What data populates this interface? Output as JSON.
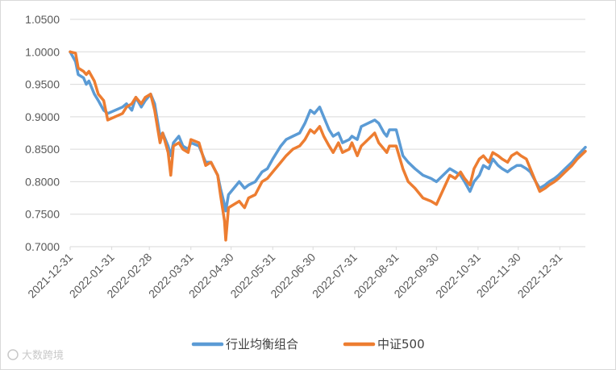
{
  "watermark": {
    "text": "大数跨境"
  },
  "chart_data": {
    "type": "line",
    "title": "",
    "xlabel": "",
    "ylabel": "",
    "ylim": [
      0.7,
      1.05
    ],
    "yticks": [
      "0.7000",
      "0.7500",
      "0.8000",
      "0.8500",
      "0.9000",
      "0.9500",
      "1.0000",
      "1.0500"
    ],
    "xticks": [
      "2021-12-31",
      "2022-01-31",
      "2022-02-28",
      "2022-03-31",
      "2022-04-30",
      "2022-05-31",
      "2022-06-30",
      "2022-07-31",
      "2022-08-31",
      "2022-09-30",
      "2022-10-31",
      "2022-11-30",
      "2022-12-31"
    ],
    "x_start": "2021-12-31",
    "x_end": "2023-01-19",
    "grid": "horizontal",
    "legend_position": "bottom",
    "series": [
      {
        "name": "行业均衡组合",
        "color": "#5B9BD5",
        "points": [
          [
            "2021-12-31",
            1.0
          ],
          [
            "2022-01-04",
            0.985
          ],
          [
            "2022-01-06",
            0.965
          ],
          [
            "2022-01-10",
            0.96
          ],
          [
            "2022-01-12",
            0.95
          ],
          [
            "2022-01-14",
            0.955
          ],
          [
            "2022-01-18",
            0.935
          ],
          [
            "2022-01-21",
            0.925
          ],
          [
            "2022-01-25",
            0.91
          ],
          [
            "2022-01-28",
            0.905
          ],
          [
            "2022-02-08",
            0.915
          ],
          [
            "2022-02-11",
            0.92
          ],
          [
            "2022-02-15",
            0.91
          ],
          [
            "2022-02-18",
            0.93
          ],
          [
            "2022-02-22",
            0.915
          ],
          [
            "2022-02-25",
            0.925
          ],
          [
            "2022-03-01",
            0.935
          ],
          [
            "2022-03-04",
            0.92
          ],
          [
            "2022-03-08",
            0.87
          ],
          [
            "2022-03-10",
            0.875
          ],
          [
            "2022-03-14",
            0.855
          ],
          [
            "2022-03-16",
            0.84
          ],
          [
            "2022-03-18",
            0.86
          ],
          [
            "2022-03-22",
            0.87
          ],
          [
            "2022-03-25",
            0.855
          ],
          [
            "2022-03-29",
            0.85
          ],
          [
            "2022-03-31",
            0.86
          ],
          [
            "2022-04-06",
            0.855
          ],
          [
            "2022-04-11",
            0.83
          ],
          [
            "2022-04-15",
            0.83
          ],
          [
            "2022-04-20",
            0.81
          ],
          [
            "2022-04-22",
            0.79
          ],
          [
            "2022-04-25",
            0.765
          ],
          [
            "2022-04-26",
            0.755
          ],
          [
            "2022-04-28",
            0.78
          ],
          [
            "2022-05-06",
            0.8
          ],
          [
            "2022-05-10",
            0.79
          ],
          [
            "2022-05-13",
            0.795
          ],
          [
            "2022-05-18",
            0.8
          ],
          [
            "2022-05-23",
            0.815
          ],
          [
            "2022-05-27",
            0.82
          ],
          [
            "2022-05-31",
            0.835
          ],
          [
            "2022-06-06",
            0.855
          ],
          [
            "2022-06-10",
            0.865
          ],
          [
            "2022-06-15",
            0.87
          ],
          [
            "2022-06-20",
            0.875
          ],
          [
            "2022-06-24",
            0.89
          ],
          [
            "2022-06-28",
            0.91
          ],
          [
            "2022-07-01",
            0.905
          ],
          [
            "2022-07-05",
            0.915
          ],
          [
            "2022-07-08",
            0.9
          ],
          [
            "2022-07-12",
            0.88
          ],
          [
            "2022-07-15",
            0.87
          ],
          [
            "2022-07-19",
            0.875
          ],
          [
            "2022-07-22",
            0.86
          ],
          [
            "2022-07-27",
            0.865
          ],
          [
            "2022-07-29",
            0.87
          ],
          [
            "2022-08-02",
            0.865
          ],
          [
            "2022-08-05",
            0.885
          ],
          [
            "2022-08-10",
            0.89
          ],
          [
            "2022-08-15",
            0.895
          ],
          [
            "2022-08-18",
            0.89
          ],
          [
            "2022-08-22",
            0.875
          ],
          [
            "2022-08-24",
            0.87
          ],
          [
            "2022-08-26",
            0.88
          ],
          [
            "2022-08-31",
            0.88
          ],
          [
            "2022-09-05",
            0.84
          ],
          [
            "2022-09-09",
            0.83
          ],
          [
            "2022-09-14",
            0.82
          ],
          [
            "2022-09-20",
            0.81
          ],
          [
            "2022-09-26",
            0.805
          ],
          [
            "2022-09-30",
            0.8
          ],
          [
            "2022-10-10",
            0.82
          ],
          [
            "2022-10-14",
            0.815
          ],
          [
            "2022-10-18",
            0.81
          ],
          [
            "2022-10-21",
            0.8
          ],
          [
            "2022-10-25",
            0.785
          ],
          [
            "2022-10-28",
            0.8
          ],
          [
            "2022-11-01",
            0.81
          ],
          [
            "2022-11-04",
            0.825
          ],
          [
            "2022-11-08",
            0.82
          ],
          [
            "2022-11-11",
            0.835
          ],
          [
            "2022-11-15",
            0.825
          ],
          [
            "2022-11-18",
            0.82
          ],
          [
            "2022-11-22",
            0.815
          ],
          [
            "2022-11-25",
            0.82
          ],
          [
            "2022-11-29",
            0.825
          ],
          [
            "2022-12-02",
            0.825
          ],
          [
            "2022-12-06",
            0.82
          ],
          [
            "2022-12-09",
            0.815
          ],
          [
            "2022-12-13",
            0.8
          ],
          [
            "2022-12-16",
            0.79
          ],
          [
            "2022-12-20",
            0.795
          ],
          [
            "2022-12-23",
            0.8
          ],
          [
            "2022-12-27",
            0.805
          ],
          [
            "2022-12-30",
            0.81
          ],
          [
            "2023-01-04",
            0.82
          ],
          [
            "2023-01-09",
            0.83
          ],
          [
            "2023-01-13",
            0.84
          ],
          [
            "2023-01-19",
            0.853
          ]
        ]
      },
      {
        "name": "中证500",
        "color": "#ED7D31",
        "points": [
          [
            "2021-12-31",
            1.0
          ],
          [
            "2022-01-04",
            0.998
          ],
          [
            "2022-01-06",
            0.975
          ],
          [
            "2022-01-10",
            0.97
          ],
          [
            "2022-01-12",
            0.965
          ],
          [
            "2022-01-14",
            0.97
          ],
          [
            "2022-01-18",
            0.955
          ],
          [
            "2022-01-21",
            0.935
          ],
          [
            "2022-01-25",
            0.925
          ],
          [
            "2022-01-28",
            0.895
          ],
          [
            "2022-02-08",
            0.905
          ],
          [
            "2022-02-11",
            0.915
          ],
          [
            "2022-02-15",
            0.92
          ],
          [
            "2022-02-18",
            0.93
          ],
          [
            "2022-02-22",
            0.92
          ],
          [
            "2022-02-25",
            0.93
          ],
          [
            "2022-03-01",
            0.935
          ],
          [
            "2022-03-04",
            0.91
          ],
          [
            "2022-03-08",
            0.86
          ],
          [
            "2022-03-10",
            0.875
          ],
          [
            "2022-03-14",
            0.845
          ],
          [
            "2022-03-16",
            0.81
          ],
          [
            "2022-03-18",
            0.855
          ],
          [
            "2022-03-22",
            0.86
          ],
          [
            "2022-03-25",
            0.85
          ],
          [
            "2022-03-29",
            0.845
          ],
          [
            "2022-03-31",
            0.865
          ],
          [
            "2022-04-06",
            0.86
          ],
          [
            "2022-04-11",
            0.825
          ],
          [
            "2022-04-15",
            0.83
          ],
          [
            "2022-04-20",
            0.81
          ],
          [
            "2022-04-22",
            0.78
          ],
          [
            "2022-04-25",
            0.74
          ],
          [
            "2022-04-26",
            0.71
          ],
          [
            "2022-04-28",
            0.76
          ],
          [
            "2022-05-06",
            0.77
          ],
          [
            "2022-05-10",
            0.76
          ],
          [
            "2022-05-13",
            0.775
          ],
          [
            "2022-05-18",
            0.78
          ],
          [
            "2022-05-23",
            0.8
          ],
          [
            "2022-05-27",
            0.805
          ],
          [
            "2022-05-31",
            0.815
          ],
          [
            "2022-06-06",
            0.83
          ],
          [
            "2022-06-10",
            0.84
          ],
          [
            "2022-06-15",
            0.85
          ],
          [
            "2022-06-20",
            0.855
          ],
          [
            "2022-06-24",
            0.865
          ],
          [
            "2022-06-28",
            0.88
          ],
          [
            "2022-07-01",
            0.875
          ],
          [
            "2022-07-05",
            0.885
          ],
          [
            "2022-07-08",
            0.87
          ],
          [
            "2022-07-12",
            0.855
          ],
          [
            "2022-07-15",
            0.845
          ],
          [
            "2022-07-19",
            0.86
          ],
          [
            "2022-07-22",
            0.845
          ],
          [
            "2022-07-27",
            0.85
          ],
          [
            "2022-07-29",
            0.86
          ],
          [
            "2022-08-02",
            0.84
          ],
          [
            "2022-08-05",
            0.855
          ],
          [
            "2022-08-10",
            0.865
          ],
          [
            "2022-08-15",
            0.875
          ],
          [
            "2022-08-18",
            0.86
          ],
          [
            "2022-08-22",
            0.85
          ],
          [
            "2022-08-24",
            0.845
          ],
          [
            "2022-08-26",
            0.855
          ],
          [
            "2022-08-31",
            0.855
          ],
          [
            "2022-09-05",
            0.82
          ],
          [
            "2022-09-09",
            0.8
          ],
          [
            "2022-09-14",
            0.79
          ],
          [
            "2022-09-20",
            0.775
          ],
          [
            "2022-09-26",
            0.77
          ],
          [
            "2022-09-30",
            0.765
          ],
          [
            "2022-10-10",
            0.81
          ],
          [
            "2022-10-14",
            0.805
          ],
          [
            "2022-10-18",
            0.815
          ],
          [
            "2022-10-21",
            0.805
          ],
          [
            "2022-10-25",
            0.795
          ],
          [
            "2022-10-28",
            0.82
          ],
          [
            "2022-11-01",
            0.835
          ],
          [
            "2022-11-04",
            0.84
          ],
          [
            "2022-11-08",
            0.83
          ],
          [
            "2022-11-11",
            0.845
          ],
          [
            "2022-11-15",
            0.84
          ],
          [
            "2022-11-18",
            0.835
          ],
          [
            "2022-11-22",
            0.83
          ],
          [
            "2022-11-25",
            0.84
          ],
          [
            "2022-11-29",
            0.845
          ],
          [
            "2022-12-02",
            0.84
          ],
          [
            "2022-12-06",
            0.835
          ],
          [
            "2022-12-09",
            0.82
          ],
          [
            "2022-12-13",
            0.8
          ],
          [
            "2022-12-16",
            0.785
          ],
          [
            "2022-12-20",
            0.79
          ],
          [
            "2022-12-23",
            0.795
          ],
          [
            "2022-12-27",
            0.8
          ],
          [
            "2022-12-30",
            0.805
          ],
          [
            "2023-01-04",
            0.815
          ],
          [
            "2023-01-09",
            0.825
          ],
          [
            "2023-01-13",
            0.835
          ],
          [
            "2023-01-19",
            0.847
          ]
        ]
      }
    ]
  }
}
